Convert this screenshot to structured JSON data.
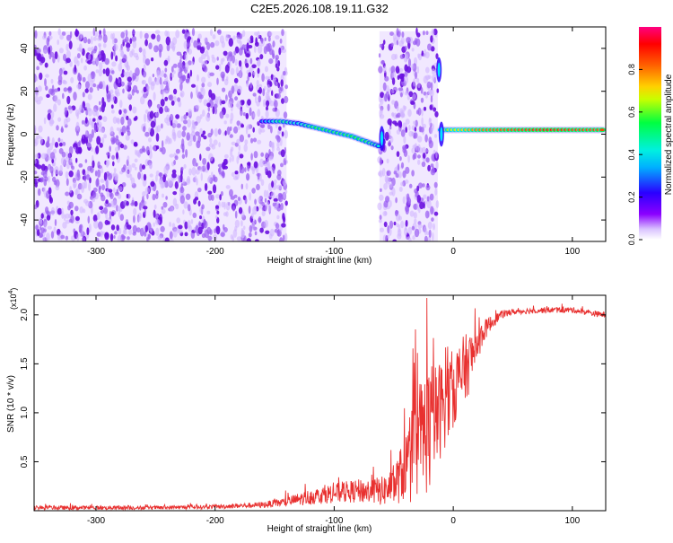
{
  "title": "C2E5.2026.108.19.11.G32",
  "chart_data": [
    {
      "type": "heatmap",
      "xlabel": "Height of straight line (km)",
      "ylabel": "Frequency (Hz)",
      "xlim": [
        -352,
        128
      ],
      "ylim": [
        -50,
        50
      ],
      "xticks": [
        -300,
        -200,
        -100,
        0,
        100
      ],
      "xtick_labels": [
        "-300",
        "-200",
        "-100",
        "0",
        "100"
      ],
      "yticks": [
        -40,
        -20,
        0,
        20,
        40
      ],
      "ytick_labels": [
        "-40",
        "-20",
        "0",
        "20",
        "40"
      ],
      "colorbar": {
        "label": "Normalized spectral amplitude",
        "range": [
          0,
          1
        ],
        "ticks": [
          0,
          0.2,
          0.4,
          0.6,
          0.8
        ],
        "tick_labels": [
          "0.0",
          "0.2",
          "0.4",
          "0.6",
          "0.8"
        ],
        "colors": [
          "#ffffff",
          "#8b00ff",
          "#0000ff",
          "#00e5ff",
          "#00ff00",
          "#ffff00",
          "#ff8000",
          "#ff0000",
          "#ff0080"
        ]
      },
      "regions": [
        {
          "name": "noise",
          "x_range": [
            -352,
            -140
          ],
          "f_range": [
            -50,
            48
          ],
          "amplitude": 0.1
        },
        {
          "name": "noise-band",
          "x_range": [
            -62,
            -13
          ],
          "f_range": [
            -50,
            48
          ],
          "amplitude": 0.08
        }
      ],
      "signal_track": [
        {
          "x": -160,
          "f": 6,
          "amp": 0.3
        },
        {
          "x": -145,
          "f": 6,
          "amp": 0.5
        },
        {
          "x": -130,
          "f": 5,
          "amp": 0.4
        },
        {
          "x": -115,
          "f": 3,
          "amp": 0.55
        },
        {
          "x": -100,
          "f": 1,
          "amp": 0.5
        },
        {
          "x": -85,
          "f": -1,
          "amp": 0.55
        },
        {
          "x": -70,
          "f": -4,
          "amp": 0.5
        },
        {
          "x": -60,
          "f": -6,
          "amp": 0.4
        },
        {
          "x": -10,
          "f": 2,
          "amp": 0.6
        },
        {
          "x": 20,
          "f": 2,
          "amp": 0.8
        },
        {
          "x": 50,
          "f": 2,
          "amp": 0.85
        },
        {
          "x": 80,
          "f": 2,
          "amp": 0.9
        },
        {
          "x": 110,
          "f": 2,
          "amp": 0.85
        },
        {
          "x": 128,
          "f": 2,
          "amp": 0.85
        }
      ]
    },
    {
      "type": "line",
      "xlabel": "Height of straight line (km)",
      "ylabel": "SNR (10 * v/v)",
      "multiplier": "(x10",
      "multiplier_exp": "4",
      "multiplier_close": ")",
      "xlim": [
        -352,
        128
      ],
      "ylim": [
        0,
        2.2
      ],
      "xticks": [
        -300,
        -200,
        -100,
        0,
        100
      ],
      "xtick_labels": [
        "-300",
        "-200",
        "-100",
        "0",
        "100"
      ],
      "yticks": [
        0.5,
        1.0,
        1.5,
        2.0
      ],
      "ytick_labels": [
        "0.5",
        "1.0",
        "1.5",
        "2.0"
      ],
      "series": [
        {
          "name": "SNR",
          "color": "#e8302f",
          "x": [
            -352,
            -300,
            -250,
            -200,
            -160,
            -140,
            -120,
            -100,
            -80,
            -60,
            -50,
            -40,
            -35,
            -30,
            -25,
            -20,
            -15,
            -10,
            -5,
            0,
            5,
            10,
            15,
            20,
            25,
            30,
            35,
            40,
            50,
            60,
            80,
            100,
            110,
            120,
            128
          ],
          "y": [
            0.03,
            0.03,
            0.03,
            0.04,
            0.06,
            0.09,
            0.14,
            0.18,
            0.2,
            0.2,
            0.25,
            0.45,
            0.55,
            0.7,
            0.8,
            0.85,
            0.95,
            1.05,
            1.15,
            1.25,
            1.35,
            1.45,
            1.55,
            1.7,
            1.82,
            1.9,
            1.95,
            2.0,
            2.03,
            2.04,
            2.05,
            2.05,
            2.03,
            2.01,
            2.0
          ],
          "spread": [
            0.02,
            0.02,
            0.02,
            0.02,
            0.03,
            0.05,
            0.08,
            0.1,
            0.12,
            0.15,
            0.2,
            0.35,
            0.5,
            0.6,
            0.65,
            0.7,
            0.55,
            0.5,
            0.45,
            0.4,
            0.4,
            0.35,
            0.3,
            0.2,
            0.12,
            0.08,
            0.06,
            0.04,
            0.03,
            0.03,
            0.03,
            0.03,
            0.03,
            0.03,
            0.03
          ]
        }
      ]
    }
  ]
}
